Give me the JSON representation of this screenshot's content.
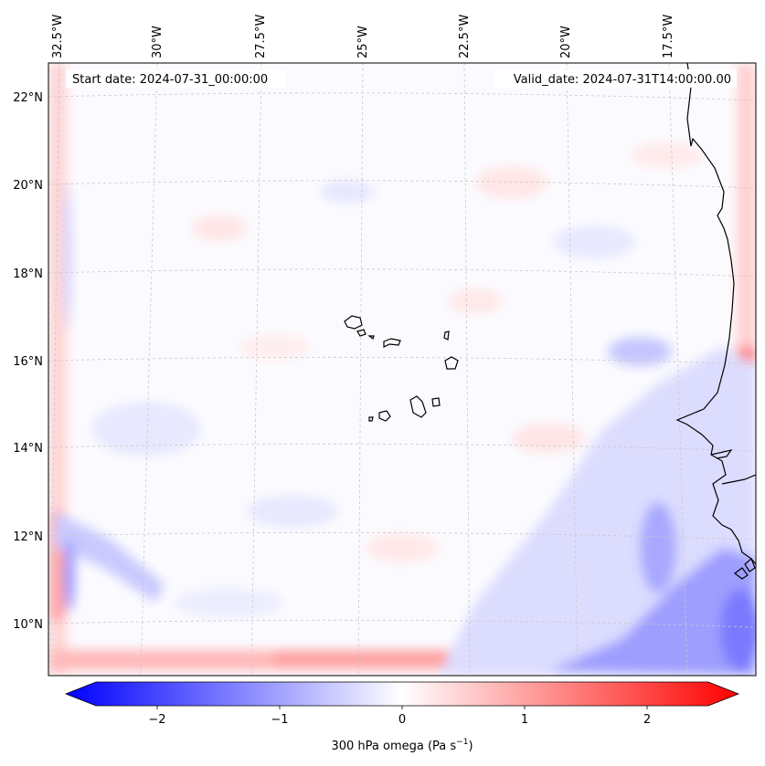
{
  "map": {
    "start_label": "Start date: 2024-07-31_00:00:00",
    "valid_label": "Valid_date: 2024-07-31T14:00:00.00",
    "lon_labels": [
      "32.5°W",
      "30°W",
      "27.5°W",
      "25°W",
      "22.5°W",
      "20°W",
      "17.5°W"
    ],
    "lat_labels": [
      "22°N",
      "20°N",
      "18°N",
      "16°N",
      "14°N",
      "12°N",
      "10°N"
    ],
    "lon_values": [
      -32.5,
      -30,
      -27.5,
      -25,
      -22.5,
      -20,
      -17.5
    ],
    "lat_values": [
      22,
      20,
      18,
      16,
      14,
      12,
      10
    ],
    "extent": {
      "lon_min": -33.0,
      "lon_max": -15.4,
      "lat_min": 8.9,
      "lat_max": 22.8
    },
    "coast_color": "#000000",
    "grid_color": "#c8c8c8"
  },
  "colorbar": {
    "label": "300 hPa omega (Pa s",
    "label_superscript": "−1",
    "label_suffix": ")",
    "tick_labels": [
      "−2",
      "−1",
      "0",
      "1",
      "2"
    ],
    "tick_values": [
      -2,
      -1,
      0,
      1,
      2
    ],
    "range": [
      -2.5,
      2.5
    ],
    "low_color": "#0000ff",
    "mid_color": "#ffffff",
    "high_color": "#ff0000"
  }
}
